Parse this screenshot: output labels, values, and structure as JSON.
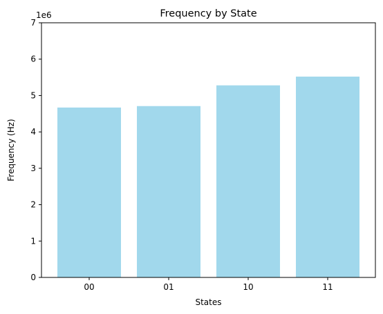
{
  "chart_data": {
    "type": "bar",
    "title": "Frequency by State",
    "xlabel": "States",
    "ylabel": "Frequency (Hz)",
    "y_offset_label": "1e6",
    "y_scale": 1000000,
    "categories": [
      "00",
      "01",
      "10",
      "11"
    ],
    "values": [
      4670000,
      4710000,
      5280000,
      5520000
    ],
    "ylim": [
      0,
      7000000
    ],
    "yticks": [
      0,
      1,
      2,
      3,
      4,
      5,
      6,
      7
    ],
    "bar_color": "#a1d8ec",
    "grid": false,
    "legend": "none"
  }
}
